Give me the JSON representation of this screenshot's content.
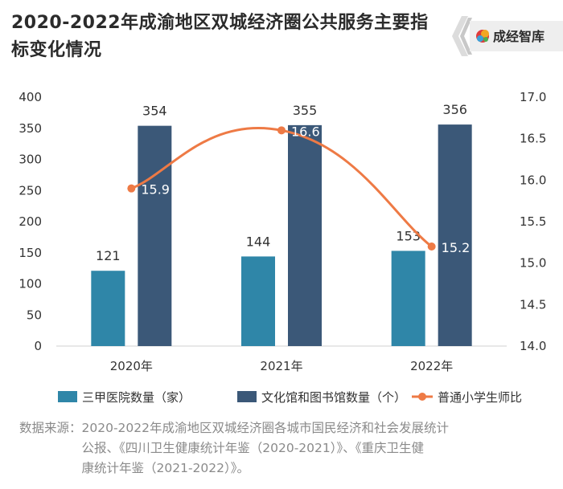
{
  "header": {
    "title": "2020-2022年成渝地区双城经济圈公共服务主要指标变化情况",
    "brand_name": "成经智库",
    "brand_colors": [
      "#e03a3a",
      "#f2a623",
      "#3aa0d8",
      "#4caf50"
    ]
  },
  "chart_data": {
    "type": "bar",
    "categories": [
      "2020年",
      "2021年",
      "2022年"
    ],
    "series": [
      {
        "name": "三甲医院数量（家）",
        "kind": "bar",
        "axis": "left",
        "color": "#2f86a8",
        "values": [
          121,
          144,
          153
        ]
      },
      {
        "name": "文化馆和图书馆数量（个）",
        "kind": "bar",
        "axis": "left",
        "color": "#3b5878",
        "values": [
          354,
          355,
          356
        ]
      },
      {
        "name": "普通小学生师比",
        "kind": "line",
        "axis": "right",
        "color": "#ee7a45",
        "smooth": true,
        "values": [
          15.9,
          16.6,
          15.2
        ]
      }
    ],
    "y_left": {
      "min": 0,
      "max": 400,
      "ticks": [
        0,
        50,
        100,
        150,
        200,
        250,
        300,
        350,
        400
      ]
    },
    "y_right": {
      "min": 14.0,
      "max": 17.0,
      "ticks": [
        "14.0",
        "14.5",
        "15.0",
        "15.5",
        "16.0",
        "16.5",
        "17.0"
      ]
    },
    "legend_position": "bottom",
    "grid": false
  },
  "source": "数据来源：2020-2022年成渝地区双城经济圈各城市国民经济和社会发展统计\n　　　　　公报、《四川卫生健康统计年鉴（2020-2021）》、《重庆卫生健\n　　　　　康统计年鉴（2021-2022）》。"
}
